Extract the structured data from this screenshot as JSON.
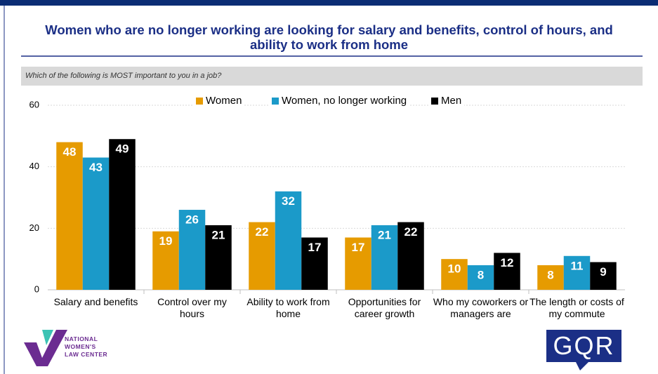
{
  "chart_data": {
    "type": "bar",
    "title": "Women who are no longer working are looking for salary and benefits, control of hours, and ability to work from home",
    "subtitle": "Which of the following is MOST important to you in a job?",
    "categories": [
      "Salary and benefits",
      "Control over my hours",
      "Ability to work from home",
      "Opportunities for career growth",
      "Who my coworkers or managers are",
      "The length or costs of my commute"
    ],
    "series": [
      {
        "name": "Women",
        "color": "#e69b00",
        "values": [
          48,
          19,
          22,
          17,
          10,
          8
        ]
      },
      {
        "name": "Women, no longer working",
        "color": "#1b9ac9",
        "values": [
          43,
          26,
          32,
          21,
          8,
          11
        ]
      },
      {
        "name": "Men",
        "color": "#000000",
        "values": [
          49,
          21,
          17,
          22,
          12,
          9
        ]
      }
    ],
    "ylim": [
      0,
      60
    ],
    "yticks": [
      0,
      20,
      40,
      60
    ],
    "grid": true,
    "legend": "top"
  },
  "logos": {
    "nwlc": [
      "NATIONAL",
      "WOMEN'S",
      "LAW CENTER"
    ],
    "gqr": "GQR"
  }
}
